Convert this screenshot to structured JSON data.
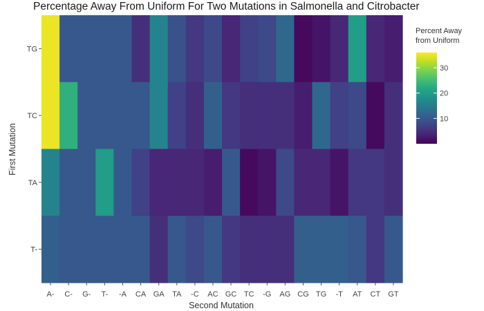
{
  "chart_data": {
    "type": "heatmap",
    "title": "Percentage Away From Uniform For Two Mutations in Salmonella and Citrobacter",
    "xlabel": "Second Mutation",
    "ylabel": "First Mutation",
    "x_categories": [
      "A-",
      "C-",
      "G-",
      "T-",
      "-A",
      "CA",
      "GA",
      "TA",
      "-C",
      "AC",
      "GC",
      "TC",
      "-G",
      "AG",
      "CG",
      "TG",
      "-T",
      "AT",
      "CT",
      "GT"
    ],
    "y_categories": [
      "TG",
      "TC",
      "TA",
      "T-"
    ],
    "values": [
      [
        35,
        10,
        10,
        10,
        10,
        5,
        16,
        9,
        6,
        8,
        4,
        7,
        8,
        12,
        1,
        2,
        4,
        20,
        4,
        3
      ],
      [
        35,
        23,
        10,
        10,
        10,
        10,
        16,
        7,
        5,
        11,
        6,
        5,
        5,
        5,
        3,
        12,
        7,
        8,
        1,
        5
      ],
      [
        16,
        10,
        10,
        20,
        10,
        7,
        4,
        4,
        4,
        3,
        10,
        1,
        2,
        8,
        4,
        4,
        2,
        6,
        6,
        5
      ],
      [
        11,
        10,
        10,
        10,
        10,
        10,
        5,
        10,
        8,
        10,
        6,
        5,
        5,
        5,
        11,
        11,
        11,
        10,
        6,
        10
      ]
    ],
    "colorscale": "viridis",
    "zlim": [
      0,
      36
    ],
    "legend": {
      "title_lines": [
        "Percent Away",
        "from Uniform"
      ],
      "ticks": [
        10,
        20,
        30
      ],
      "placement": "right"
    },
    "grid": false
  }
}
